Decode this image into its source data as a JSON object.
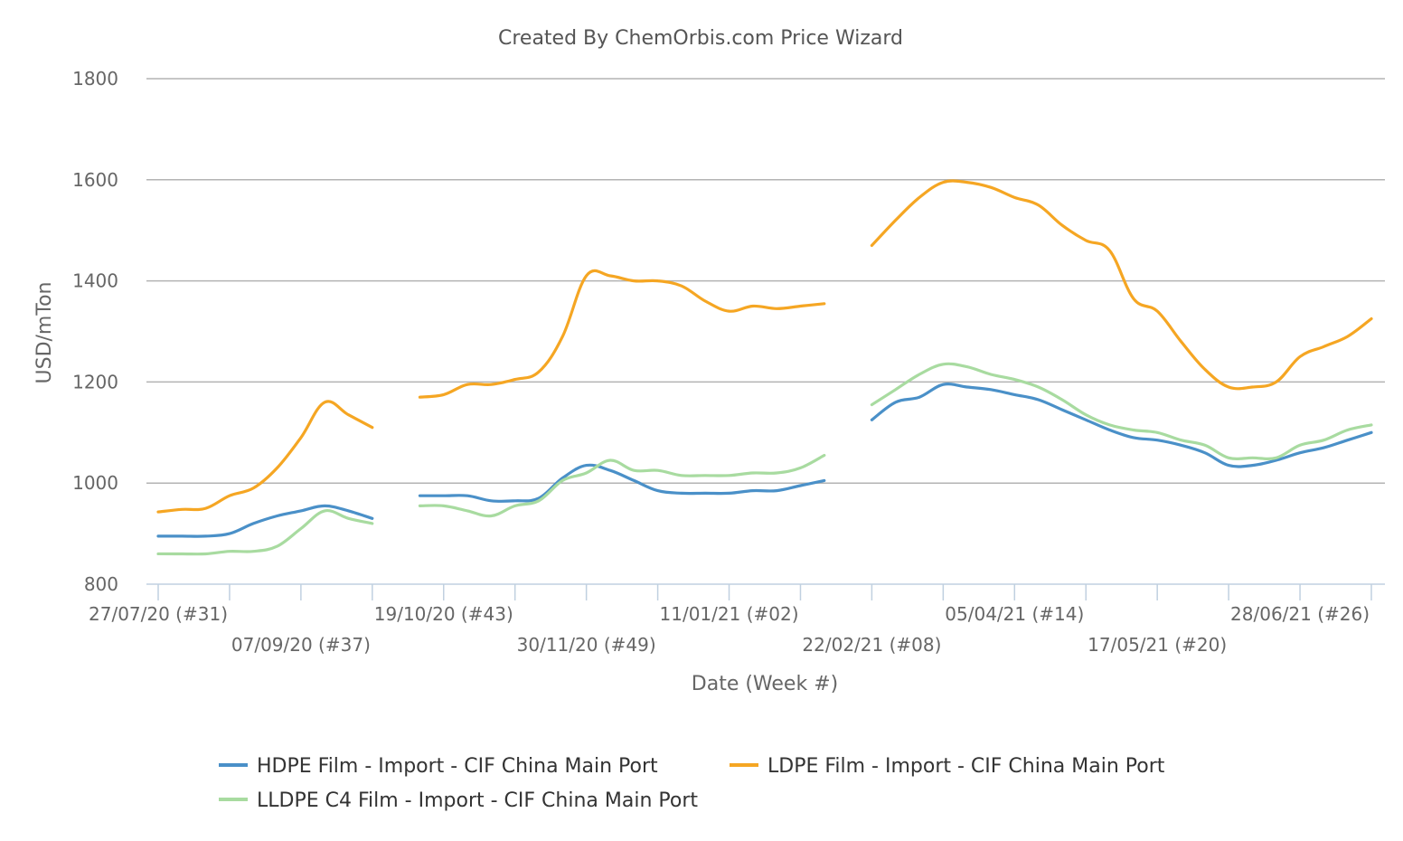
{
  "chart_data": {
    "type": "line",
    "title": "Created By ChemOrbis.com Price Wizard",
    "xlabel": "Date (Week #)",
    "ylabel": "USD/mTon",
    "ylim": [
      800,
      1800
    ],
    "yticks": [
      800,
      1000,
      1200,
      1400,
      1600,
      1800
    ],
    "grid": true,
    "legend_position": "bottom",
    "x_start_week_label": "27/07/20 (#31)",
    "x_tick_labels": [
      {
        "week": 0,
        "label": "27/07/20 (#31)"
      },
      {
        "week": 6,
        "label": "07/09/20 (#37)"
      },
      {
        "week": 12,
        "label": "19/10/20 (#43)"
      },
      {
        "week": 18,
        "label": "30/11/20 (#49)"
      },
      {
        "week": 24,
        "label": "11/01/21 (#02)"
      },
      {
        "week": 30,
        "label": "22/02/21 (#08)"
      },
      {
        "week": 36,
        "label": "05/04/21 (#14)"
      },
      {
        "week": 42,
        "label": "17/05/21 (#20)"
      },
      {
        "week": 48,
        "label": "28/06/21 (#26)"
      }
    ],
    "x_minor_ticks": [
      0,
      3,
      6,
      9,
      12,
      15,
      18,
      21,
      24,
      27,
      30,
      33,
      36,
      39,
      42,
      45,
      48,
      51
    ],
    "series": [
      {
        "name": "HDPE Film - Import - CIF China Main Port",
        "color": "#4a90c8",
        "points": [
          [
            0,
            895
          ],
          [
            1,
            895
          ],
          [
            2,
            895
          ],
          [
            3,
            900
          ],
          [
            4,
            920
          ],
          [
            5,
            935
          ],
          [
            6,
            945
          ],
          [
            7,
            955
          ],
          [
            8,
            945
          ],
          [
            9,
            930
          ],
          null,
          [
            11,
            975
          ],
          [
            12,
            975
          ],
          [
            13,
            975
          ],
          [
            14,
            965
          ],
          [
            15,
            965
          ],
          [
            16,
            970
          ],
          [
            17,
            1010
          ],
          [
            18,
            1035
          ],
          [
            19,
            1025
          ],
          [
            20,
            1005
          ],
          [
            21,
            985
          ],
          [
            22,
            980
          ],
          [
            23,
            980
          ],
          [
            24,
            980
          ],
          [
            25,
            985
          ],
          [
            26,
            985
          ],
          [
            27,
            995
          ],
          [
            28,
            1005
          ],
          null,
          [
            30,
            1125
          ],
          [
            31,
            1160
          ],
          [
            32,
            1170
          ],
          [
            33,
            1195
          ],
          [
            34,
            1190
          ],
          [
            35,
            1185
          ],
          [
            36,
            1175
          ],
          [
            37,
            1165
          ],
          [
            38,
            1145
          ],
          [
            39,
            1125
          ],
          [
            40,
            1105
          ],
          [
            41,
            1090
          ],
          [
            42,
            1085
          ],
          [
            43,
            1075
          ],
          [
            44,
            1060
          ],
          [
            45,
            1035
          ],
          [
            46,
            1035
          ],
          [
            47,
            1045
          ],
          [
            48,
            1060
          ],
          [
            49,
            1070
          ],
          [
            50,
            1085
          ],
          [
            51,
            1100
          ]
        ]
      },
      {
        "name": "LDPE Film - Import - CIF China Main Port",
        "color": "#f5a623",
        "points": [
          [
            0,
            943
          ],
          [
            1,
            948
          ],
          [
            2,
            950
          ],
          [
            3,
            975
          ],
          [
            4,
            990
          ],
          [
            5,
            1030
          ],
          [
            6,
            1090
          ],
          [
            7,
            1160
          ],
          [
            8,
            1135
          ],
          [
            9,
            1110
          ],
          null,
          [
            11,
            1170
          ],
          [
            12,
            1175
          ],
          [
            13,
            1195
          ],
          [
            14,
            1195
          ],
          [
            15,
            1205
          ],
          [
            16,
            1220
          ],
          [
            17,
            1290
          ],
          [
            18,
            1410
          ],
          [
            19,
            1410
          ],
          [
            20,
            1400
          ],
          [
            21,
            1400
          ],
          [
            22,
            1390
          ],
          [
            23,
            1360
          ],
          [
            24,
            1340
          ],
          [
            25,
            1350
          ],
          [
            26,
            1345
          ],
          [
            27,
            1350
          ],
          [
            28,
            1355
          ],
          null,
          [
            30,
            1470
          ],
          [
            31,
            1520
          ],
          [
            32,
            1565
          ],
          [
            33,
            1595
          ],
          [
            34,
            1595
          ],
          [
            35,
            1585
          ],
          [
            36,
            1565
          ],
          [
            37,
            1550
          ],
          [
            38,
            1510
          ],
          [
            39,
            1480
          ],
          [
            40,
            1460
          ],
          [
            41,
            1365
          ],
          [
            42,
            1340
          ],
          [
            43,
            1280
          ],
          [
            44,
            1225
          ],
          [
            45,
            1190
          ],
          [
            46,
            1190
          ],
          [
            47,
            1200
          ],
          [
            48,
            1250
          ],
          [
            49,
            1270
          ],
          [
            50,
            1290
          ],
          [
            51,
            1325
          ]
        ]
      },
      {
        "name": "LLDPE C4 Film - Import - CIF China Main Port",
        "color": "#a8dba0",
        "points": [
          [
            0,
            860
          ],
          [
            1,
            860
          ],
          [
            2,
            860
          ],
          [
            3,
            865
          ],
          [
            4,
            865
          ],
          [
            5,
            875
          ],
          [
            6,
            910
          ],
          [
            7,
            945
          ],
          [
            8,
            930
          ],
          [
            9,
            920
          ],
          null,
          [
            11,
            955
          ],
          [
            12,
            955
          ],
          [
            13,
            945
          ],
          [
            14,
            935
          ],
          [
            15,
            955
          ],
          [
            16,
            965
          ],
          [
            17,
            1005
          ],
          [
            18,
            1020
          ],
          [
            19,
            1045
          ],
          [
            20,
            1025
          ],
          [
            21,
            1025
          ],
          [
            22,
            1015
          ],
          [
            23,
            1015
          ],
          [
            24,
            1015
          ],
          [
            25,
            1020
          ],
          [
            26,
            1020
          ],
          [
            27,
            1030
          ],
          [
            28,
            1055
          ],
          null,
          [
            30,
            1155
          ],
          [
            31,
            1185
          ],
          [
            32,
            1215
          ],
          [
            33,
            1235
          ],
          [
            34,
            1230
          ],
          [
            35,
            1215
          ],
          [
            36,
            1205
          ],
          [
            37,
            1190
          ],
          [
            38,
            1165
          ],
          [
            39,
            1135
          ],
          [
            40,
            1115
          ],
          [
            41,
            1105
          ],
          [
            42,
            1100
          ],
          [
            43,
            1085
          ],
          [
            44,
            1075
          ],
          [
            45,
            1050
          ],
          [
            46,
            1050
          ],
          [
            47,
            1050
          ],
          [
            48,
            1075
          ],
          [
            49,
            1085
          ],
          [
            50,
            1105
          ],
          [
            51,
            1115
          ]
        ]
      }
    ]
  }
}
